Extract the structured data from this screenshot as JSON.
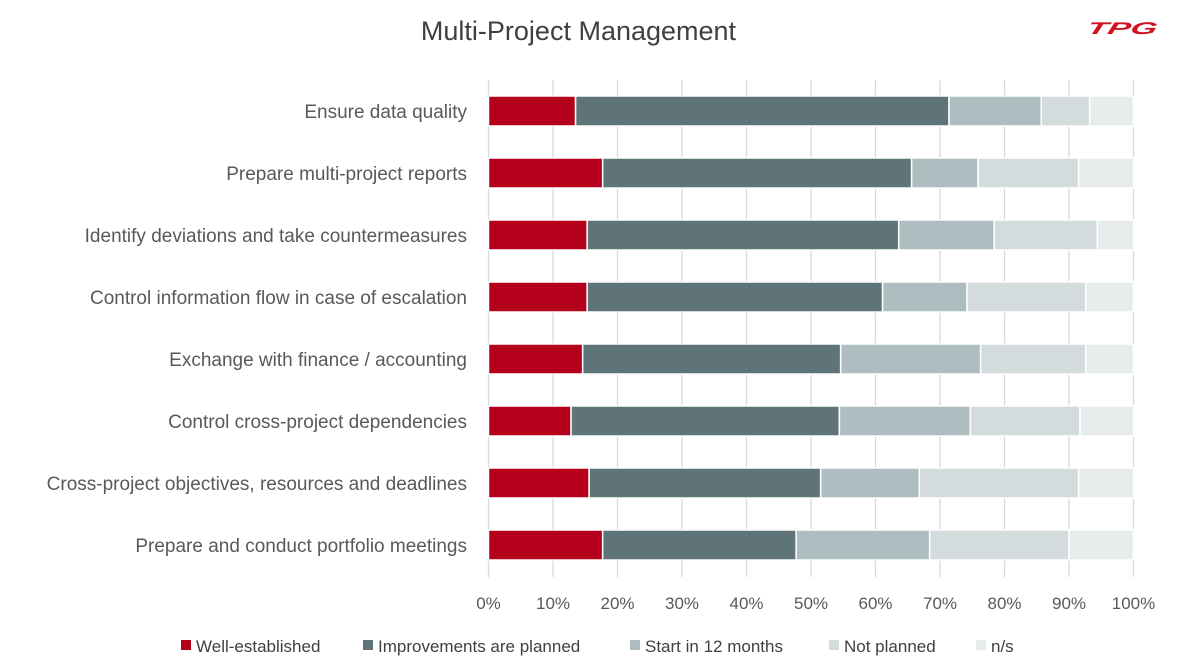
{
  "chart_data": {
    "type": "bar",
    "orientation": "horizontal",
    "stacked": "percent",
    "title": "Multi-Project Management",
    "categories": [
      "Ensure data quality",
      "Prepare multi-project reports",
      "Identify deviations and take countermeasures",
      "Control information flow in case of escalation",
      "Exchange with finance / accounting",
      "Control cross-project dependencies",
      "Cross-project objectives, resources and deadlines",
      "Prepare and conduct portfolio meetings"
    ],
    "series": [
      {
        "name": "Well-established",
        "color": "#b5001b",
        "values": [
          13.5,
          17.7,
          15.3,
          15.3,
          14.6,
          12.8,
          15.6,
          17.7
        ]
      },
      {
        "name": "Improvements are planned",
        "color": "#5e7479",
        "values": [
          57.9,
          47.9,
          48.3,
          45.8,
          40.0,
          41.6,
          35.9,
          30.0
        ]
      },
      {
        "name": "Start in 12 months",
        "color": "#adbdc0",
        "values": [
          14.3,
          10.3,
          14.8,
          13.1,
          21.7,
          20.3,
          15.3,
          20.7
        ]
      },
      {
        "name": "Not planned",
        "color": "#d3dbdd",
        "values": [
          7.5,
          15.6,
          16.0,
          18.4,
          16.3,
          17.0,
          24.7,
          21.6
        ]
      },
      {
        "name": "n/s",
        "color": "#e6eceb",
        "values": [
          6.8,
          8.5,
          5.6,
          7.4,
          7.4,
          8.3,
          8.5,
          10.0
        ]
      }
    ],
    "xlim": [
      0,
      100
    ],
    "xticks": [
      "0%",
      "10%",
      "20%",
      "30%",
      "40%",
      "50%",
      "60%",
      "70%",
      "80%",
      "90%",
      "100%"
    ],
    "grid": "vertical",
    "legend": "bottom"
  },
  "logo": {
    "text": "TPG",
    "color": "#d0101f"
  }
}
